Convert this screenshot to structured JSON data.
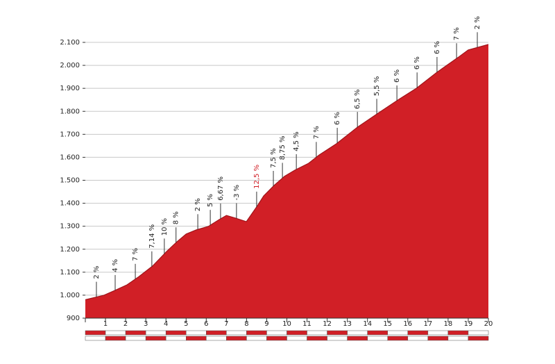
{
  "chart_data": {
    "type": "area",
    "x": [
      0,
      0.93,
      1.45,
      2.07,
      2.65,
      3.34,
      4.03,
      4.54,
      5.0,
      5.5,
      6.1,
      6.64,
      7.0,
      7.46,
      7.99,
      8.5,
      8.85,
      9.36,
      9.88,
      10.4,
      11.08,
      11.6,
      12.46,
      13.5,
      14.53,
      15.56,
      16.42,
      17.45,
      18.49,
      19.0,
      20
    ],
    "values": [
      980,
      1000,
      1020,
      1045,
      1080,
      1127,
      1190,
      1232,
      1266,
      1284,
      1299,
      1329,
      1347,
      1335,
      1320,
      1384,
      1432,
      1477,
      1517,
      1544,
      1574,
      1610,
      1659,
      1731,
      1792,
      1852,
      1900,
      1970,
      2034,
      2067,
      2091
    ],
    "color": "#d11f26",
    "xlim": [
      0,
      20
    ],
    "xticks": [
      0,
      1,
      2,
      3,
      4,
      5,
      6,
      7,
      8,
      9,
      10,
      11,
      12,
      13,
      14,
      15,
      16,
      17,
      18,
      19,
      20
    ],
    "ylim": [
      900,
      2100
    ],
    "yticks": [
      900,
      {
        "value": 1000,
        "label": "1.000"
      },
      {
        "value": 1100,
        "label": "1.100"
      },
      {
        "value": 1200,
        "label": "1.200"
      },
      {
        "value": 1300,
        "label": "1.300"
      },
      {
        "value": 1400,
        "label": "1.400"
      },
      {
        "value": 1500,
        "label": "1.500"
      },
      {
        "value": 1600,
        "label": "1.600"
      },
      {
        "value": 1700,
        "label": "1.700"
      },
      {
        "value": 1800,
        "label": "1.800"
      },
      {
        "value": 1900,
        "label": "1.900"
      },
      {
        "value": 2000,
        "label": "2.000"
      },
      {
        "value": 2100,
        "label": "2.100"
      }
    ],
    "grid": true,
    "annotations": [
      {
        "x": 0.55,
        "label": "2 %"
      },
      {
        "x": 1.48,
        "label": "4 %"
      },
      {
        "x": 2.48,
        "label": "7 %"
      },
      {
        "x": 3.3,
        "label": "7,14 %"
      },
      {
        "x": 3.92,
        "label": "10 %"
      },
      {
        "x": 4.5,
        "label": "8 %"
      },
      {
        "x": 5.58,
        "label": "2 %"
      },
      {
        "x": 6.2,
        "label": "5 %"
      },
      {
        "x": 6.71,
        "label": "6,67 %"
      },
      {
        "x": 7.5,
        "label": "-3 %"
      },
      {
        "x": 8.5,
        "label": "12,5 %",
        "color": "#d11f26"
      },
      {
        "x": 9.33,
        "label": "7,5 %"
      },
      {
        "x": 9.78,
        "label": "8,75 %"
      },
      {
        "x": 10.47,
        "label": "4,5 %"
      },
      {
        "x": 11.46,
        "label": "7 %"
      },
      {
        "x": 12.5,
        "label": "6 %"
      },
      {
        "x": 13.5,
        "label": "6,5 %"
      },
      {
        "x": 14.46,
        "label": "5,5 %"
      },
      {
        "x": 15.46,
        "label": "6 %"
      },
      {
        "x": 16.46,
        "label": "6 %"
      },
      {
        "x": 17.45,
        "label": "6 %"
      },
      {
        "x": 18.42,
        "label": "7 %"
      },
      {
        "x": 19.45,
        "label": "2 %"
      }
    ]
  }
}
